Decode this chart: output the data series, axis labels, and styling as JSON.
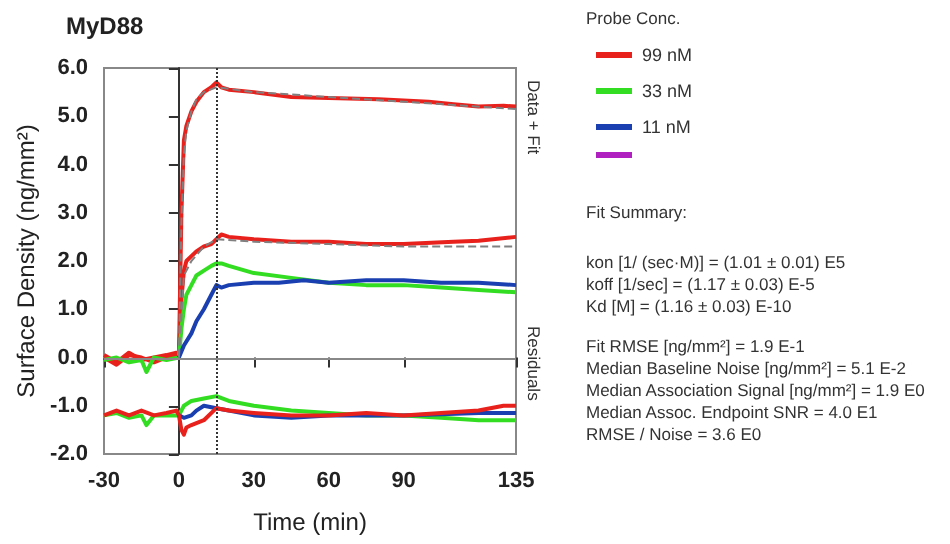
{
  "chart_data": {
    "type": "line",
    "title": "MyD88",
    "xlabel": "Time (min)",
    "ylabel": "Surface Density (ng/mm²)",
    "legend_title": "Probe Conc.",
    "legend": "right",
    "marker": "none",
    "xlim": [
      -30,
      135
    ],
    "xticks": [
      -30,
      0,
      30,
      60,
      90,
      135
    ],
    "ylim": [
      -2,
      6
    ],
    "yticks": [
      {
        "value": -2,
        "label": "-2.0"
      },
      {
        "value": -1,
        "label": "-1.0"
      },
      {
        "value": 0,
        "label": "0.0"
      },
      {
        "value": 1,
        "label": "1.0"
      },
      {
        "value": 2,
        "label": "2.0"
      },
      {
        "value": 3,
        "label": "3.0"
      },
      {
        "value": 4,
        "label": "4.0"
      },
      {
        "value": 5,
        "label": "5.0"
      },
      {
        "value": 6,
        "label": "6.0"
      }
    ],
    "ref_lines": [
      {
        "axis": "x",
        "value": 15,
        "label": null,
        "color": "#333333",
        "line_style": "dotted"
      },
      {
        "axis": "y",
        "value": 0,
        "label": null,
        "color": "#888888",
        "line_style": "solid"
      }
    ],
    "series": [
      {
        "name": "99 nM",
        "color": "#e8211c",
        "x": [
          -30,
          -25,
          -20,
          -15,
          -10,
          -5,
          -1,
          0,
          1,
          2,
          3,
          5,
          7,
          10,
          13,
          15,
          17,
          20,
          30,
          45,
          60,
          80,
          100,
          110,
          120,
          130,
          135
        ],
        "values": [
          0.05,
          -0.1,
          0.1,
          -0.05,
          0.0,
          0.05,
          0.1,
          0.0,
          3.0,
          4.5,
          4.8,
          5.1,
          5.3,
          5.5,
          5.6,
          5.7,
          5.6,
          5.55,
          5.5,
          5.4,
          5.38,
          5.35,
          5.3,
          5.25,
          5.2,
          5.22,
          5.2
        ]
      },
      {
        "color": "#e8211c",
        "x": [
          -30,
          -25,
          -20,
          -15,
          -10,
          -5,
          -1,
          0,
          1,
          2,
          3,
          5,
          7,
          10,
          13,
          15,
          17,
          20,
          30,
          45,
          60,
          75,
          90,
          110,
          120,
          135
        ],
        "values": [
          0.0,
          -0.15,
          0.05,
          0.0,
          -0.1,
          0.0,
          0.05,
          0.0,
          1.2,
          1.8,
          2.0,
          2.1,
          2.2,
          2.3,
          2.35,
          2.45,
          2.55,
          2.5,
          2.45,
          2.4,
          2.4,
          2.35,
          2.35,
          2.4,
          2.42,
          2.5
        ]
      },
      {
        "name": "33 nM",
        "color": "#33dd22",
        "x": [
          -30,
          -25,
          -20,
          -15,
          -13,
          -10,
          -5,
          0,
          1,
          2,
          3,
          5,
          7,
          10,
          13,
          15,
          17,
          20,
          30,
          45,
          60,
          75,
          90,
          105,
          120,
          135
        ],
        "values": [
          -0.05,
          0.0,
          -0.1,
          -0.05,
          -0.3,
          0.0,
          -0.05,
          0.0,
          0.6,
          1.0,
          1.3,
          1.5,
          1.7,
          1.8,
          1.9,
          1.95,
          1.95,
          1.9,
          1.75,
          1.65,
          1.55,
          1.5,
          1.5,
          1.45,
          1.4,
          1.35
        ]
      },
      {
        "name": "11 nM",
        "color": "#1a3fb0",
        "x": [
          0,
          2,
          5,
          7,
          10,
          13,
          15,
          17,
          20,
          30,
          40,
          50,
          60,
          75,
          90,
          105,
          120,
          135
        ],
        "values": [
          0.0,
          0.25,
          0.5,
          0.75,
          1.0,
          1.3,
          1.5,
          1.45,
          1.5,
          1.55,
          1.55,
          1.6,
          1.55,
          1.6,
          1.6,
          1.55,
          1.55,
          1.5
        ]
      },
      {
        "color": "#808080",
        "line_style": "dashed",
        "x": [
          0,
          1,
          2,
          3,
          5,
          7,
          10,
          15,
          30,
          60,
          90,
          135
        ],
        "values": [
          0.0,
          2.8,
          4.2,
          4.7,
          5.1,
          5.35,
          5.5,
          5.6,
          5.5,
          5.4,
          5.3,
          5.15
        ]
      },
      {
        "color": "#808080",
        "line_style": "dashed",
        "x": [
          0,
          2,
          5,
          10,
          15,
          30,
          60,
          90,
          135
        ],
        "values": [
          0.0,
          1.7,
          2.0,
          2.3,
          2.45,
          2.4,
          2.35,
          2.3,
          2.3
        ]
      },
      {
        "color": "#33dd22",
        "x": [
          -30,
          -25,
          -20,
          -15,
          -13,
          -10,
          -5,
          0,
          2,
          5,
          10,
          15,
          20,
          30,
          45,
          60,
          75,
          90,
          105,
          120,
          135
        ],
        "values": [
          -1.2,
          -1.15,
          -1.25,
          -1.2,
          -1.4,
          -1.2,
          -1.2,
          -1.2,
          -1.0,
          -0.9,
          -0.85,
          -0.8,
          -0.9,
          -1.0,
          -1.1,
          -1.15,
          -1.2,
          -1.2,
          -1.25,
          -1.3,
          -1.3
        ]
      },
      {
        "color": "#1a3fb0",
        "x": [
          0,
          2,
          5,
          7,
          10,
          15,
          20,
          30,
          45,
          60,
          90,
          120,
          135
        ],
        "values": [
          -1.2,
          -1.25,
          -1.2,
          -1.1,
          -1.0,
          -1.05,
          -1.1,
          -1.2,
          -1.25,
          -1.2,
          -1.2,
          -1.15,
          -1.15
        ]
      },
      {
        "color": "#e8211c",
        "x": [
          -30,
          -25,
          -20,
          -15,
          -10,
          -5,
          -1,
          0,
          1,
          2,
          3,
          5,
          10,
          15,
          20,
          30,
          45,
          60,
          75,
          90,
          105,
          120,
          130,
          135
        ],
        "values": [
          -1.2,
          -1.1,
          -1.2,
          -1.1,
          -1.2,
          -1.15,
          -1.1,
          -1.2,
          -1.5,
          -1.6,
          -1.45,
          -1.4,
          -1.3,
          -1.05,
          -1.1,
          -1.15,
          -1.2,
          -1.2,
          -1.15,
          -1.2,
          -1.15,
          -1.1,
          -1.0,
          -1.0
        ]
      }
    ],
    "annotations": [
      "Data + Fit",
      "Residuals",
      "Fit Summary:",
      "kon  [1/ (sec·M)]  =   (1.01 ± 0.01) E5",
      "koff  [1/sec]  =   (1.17 ± 0.03) E-5",
      "Kd  [M]  =   (1.16 ± 0.03) E-10",
      "Fit RMSE [ng/mm²]  =   1.9 E-1",
      "Median Baseline Noise [ng/mm²]  =   5.1 E-2",
      "Median Association Signal [ng/mm²]  =   1.9 E0",
      "Median Assoc. Endpoint SNR  =   4.0 E1",
      "RMSE / Noise  =   3.6 E0"
    ]
  }
}
